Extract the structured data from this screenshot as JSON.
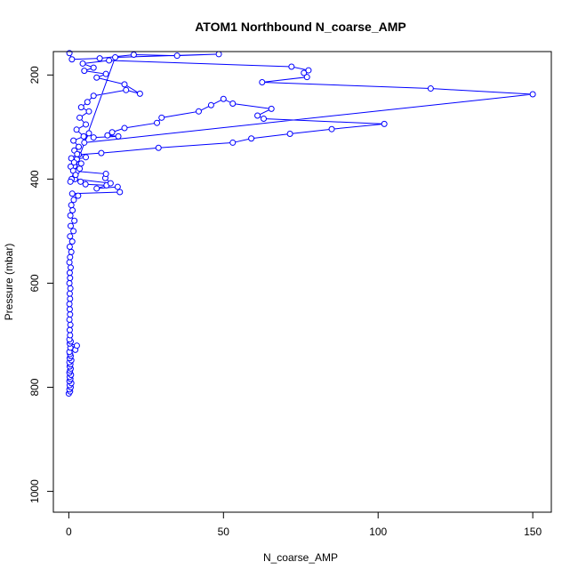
{
  "chart_data": {
    "type": "scatter",
    "title": "ATOM1 Northbound N_coarse_AMP",
    "xlabel": "N_coarse_AMP",
    "ylabel": "Pressure (mbar)",
    "xlim": [
      -5,
      156
    ],
    "ylim": [
      1040,
      155
    ],
    "y_reversed": true,
    "x_ticks": [
      0,
      50,
      100,
      150
    ],
    "y_ticks": [
      200,
      400,
      600,
      800,
      1000
    ],
    "grid": false,
    "color": "#0000ff",
    "marker": "open-circle",
    "connected": true,
    "series": [
      {
        "points": [
          [
            0.0,
            812
          ],
          [
            0.4,
            808
          ],
          [
            0.2,
            804
          ],
          [
            0.6,
            800
          ],
          [
            0.3,
            796
          ],
          [
            0.8,
            792
          ],
          [
            0.2,
            788
          ],
          [
            0.5,
            784
          ],
          [
            0.3,
            780
          ],
          [
            0.7,
            776
          ],
          [
            0.2,
            772
          ],
          [
            0.4,
            768
          ],
          [
            0.6,
            764
          ],
          [
            0.3,
            760
          ],
          [
            0.5,
            756
          ],
          [
            0.2,
            752
          ],
          [
            0.8,
            748
          ],
          [
            0.3,
            744
          ],
          [
            0.6,
            740
          ],
          [
            0.4,
            736
          ],
          [
            0.2,
            732
          ],
          [
            2.1,
            728
          ],
          [
            0.5,
            724
          ],
          [
            2.6,
            720
          ],
          [
            0.3,
            716
          ],
          [
            0.6,
            712
          ],
          [
            0.2,
            708
          ],
          [
            0.4,
            700
          ],
          [
            0.3,
            690
          ],
          [
            0.5,
            680
          ],
          [
            0.2,
            670
          ],
          [
            0.4,
            660
          ],
          [
            0.3,
            650
          ],
          [
            0.2,
            640
          ],
          [
            0.4,
            630
          ],
          [
            0.3,
            620
          ],
          [
            0.5,
            610
          ],
          [
            0.2,
            600
          ],
          [
            0.4,
            590
          ],
          [
            0.3,
            580
          ],
          [
            0.6,
            570
          ],
          [
            0.2,
            560
          ],
          [
            0.4,
            550
          ],
          [
            0.8,
            540
          ],
          [
            0.3,
            530
          ],
          [
            1.1,
            520
          ],
          [
            0.4,
            510
          ],
          [
            1.5,
            500
          ],
          [
            0.6,
            490
          ],
          [
            1.8,
            480
          ],
          [
            0.5,
            470
          ],
          [
            1.2,
            460
          ],
          [
            0.8,
            450
          ],
          [
            1.6,
            440
          ],
          [
            3.0,
            432
          ],
          [
            1.1,
            428
          ],
          [
            16.5,
            425
          ],
          [
            15.8,
            415
          ],
          [
            9.0,
            418
          ],
          [
            12.2,
            412
          ],
          [
            5.4,
            410
          ],
          [
            3.8,
            405
          ],
          [
            2.0,
            400
          ],
          [
            13.5,
            408
          ],
          [
            11.8,
            398
          ],
          [
            12.0,
            390
          ],
          [
            2.6,
            385
          ],
          [
            3.5,
            380
          ],
          [
            1.8,
            375
          ],
          [
            4.0,
            370
          ],
          [
            2.6,
            362
          ],
          [
            5.5,
            358
          ],
          [
            3.2,
            353
          ],
          [
            10.5,
            350
          ],
          [
            29.0,
            340
          ],
          [
            53.0,
            330
          ],
          [
            59.0,
            322
          ],
          [
            71.5,
            313
          ],
          [
            85.0,
            304
          ],
          [
            102.0,
            294
          ],
          [
            63.0,
            284
          ],
          [
            61.0,
            278
          ],
          [
            65.5,
            265
          ],
          [
            53.0,
            255
          ],
          [
            50.0,
            246
          ],
          [
            46.0,
            258
          ],
          [
            42.0,
            270
          ],
          [
            30.0,
            282
          ],
          [
            28.5,
            292
          ],
          [
            18.0,
            302
          ],
          [
            14.0,
            310
          ],
          [
            12.5,
            316
          ],
          [
            16.0,
            318
          ],
          [
            8.0,
            320
          ],
          [
            6.5,
            312
          ],
          [
            5.0,
            330
          ],
          [
            150.0,
            237
          ],
          [
            117.0,
            226
          ],
          [
            62.5,
            214
          ],
          [
            77.0,
            204
          ],
          [
            76.0,
            196
          ],
          [
            77.5,
            191
          ],
          [
            72.0,
            184
          ],
          [
            13.0,
            172
          ],
          [
            4.5,
            178
          ],
          [
            8.0,
            186
          ],
          [
            5.0,
            192
          ],
          [
            12.0,
            198
          ],
          [
            9.0,
            205
          ],
          [
            18.0,
            218
          ],
          [
            23.0,
            236
          ],
          [
            18.5,
            229
          ],
          [
            8.0,
            240
          ],
          [
            6.0,
            252
          ],
          [
            4.0,
            262
          ],
          [
            6.5,
            270
          ],
          [
            3.5,
            282
          ],
          [
            5.5,
            295
          ],
          [
            2.5,
            305
          ],
          [
            4.8,
            318
          ],
          [
            1.5,
            326
          ],
          [
            3.2,
            338
          ],
          [
            1.8,
            345
          ],
          [
            2.7,
            352
          ],
          [
            0.8,
            360
          ],
          [
            1.7,
            368
          ],
          [
            0.6,
            376
          ],
          [
            1.4,
            384
          ],
          [
            2.2,
            392
          ],
          [
            0.9,
            400
          ],
          [
            0.5,
            405
          ],
          [
            15.0,
            166
          ],
          [
            48.5,
            160
          ],
          [
            35.0,
            163
          ],
          [
            21.0,
            161
          ],
          [
            10.0,
            168
          ],
          [
            1.0,
            170
          ],
          [
            0.2,
            158
          ]
        ]
      }
    ]
  }
}
